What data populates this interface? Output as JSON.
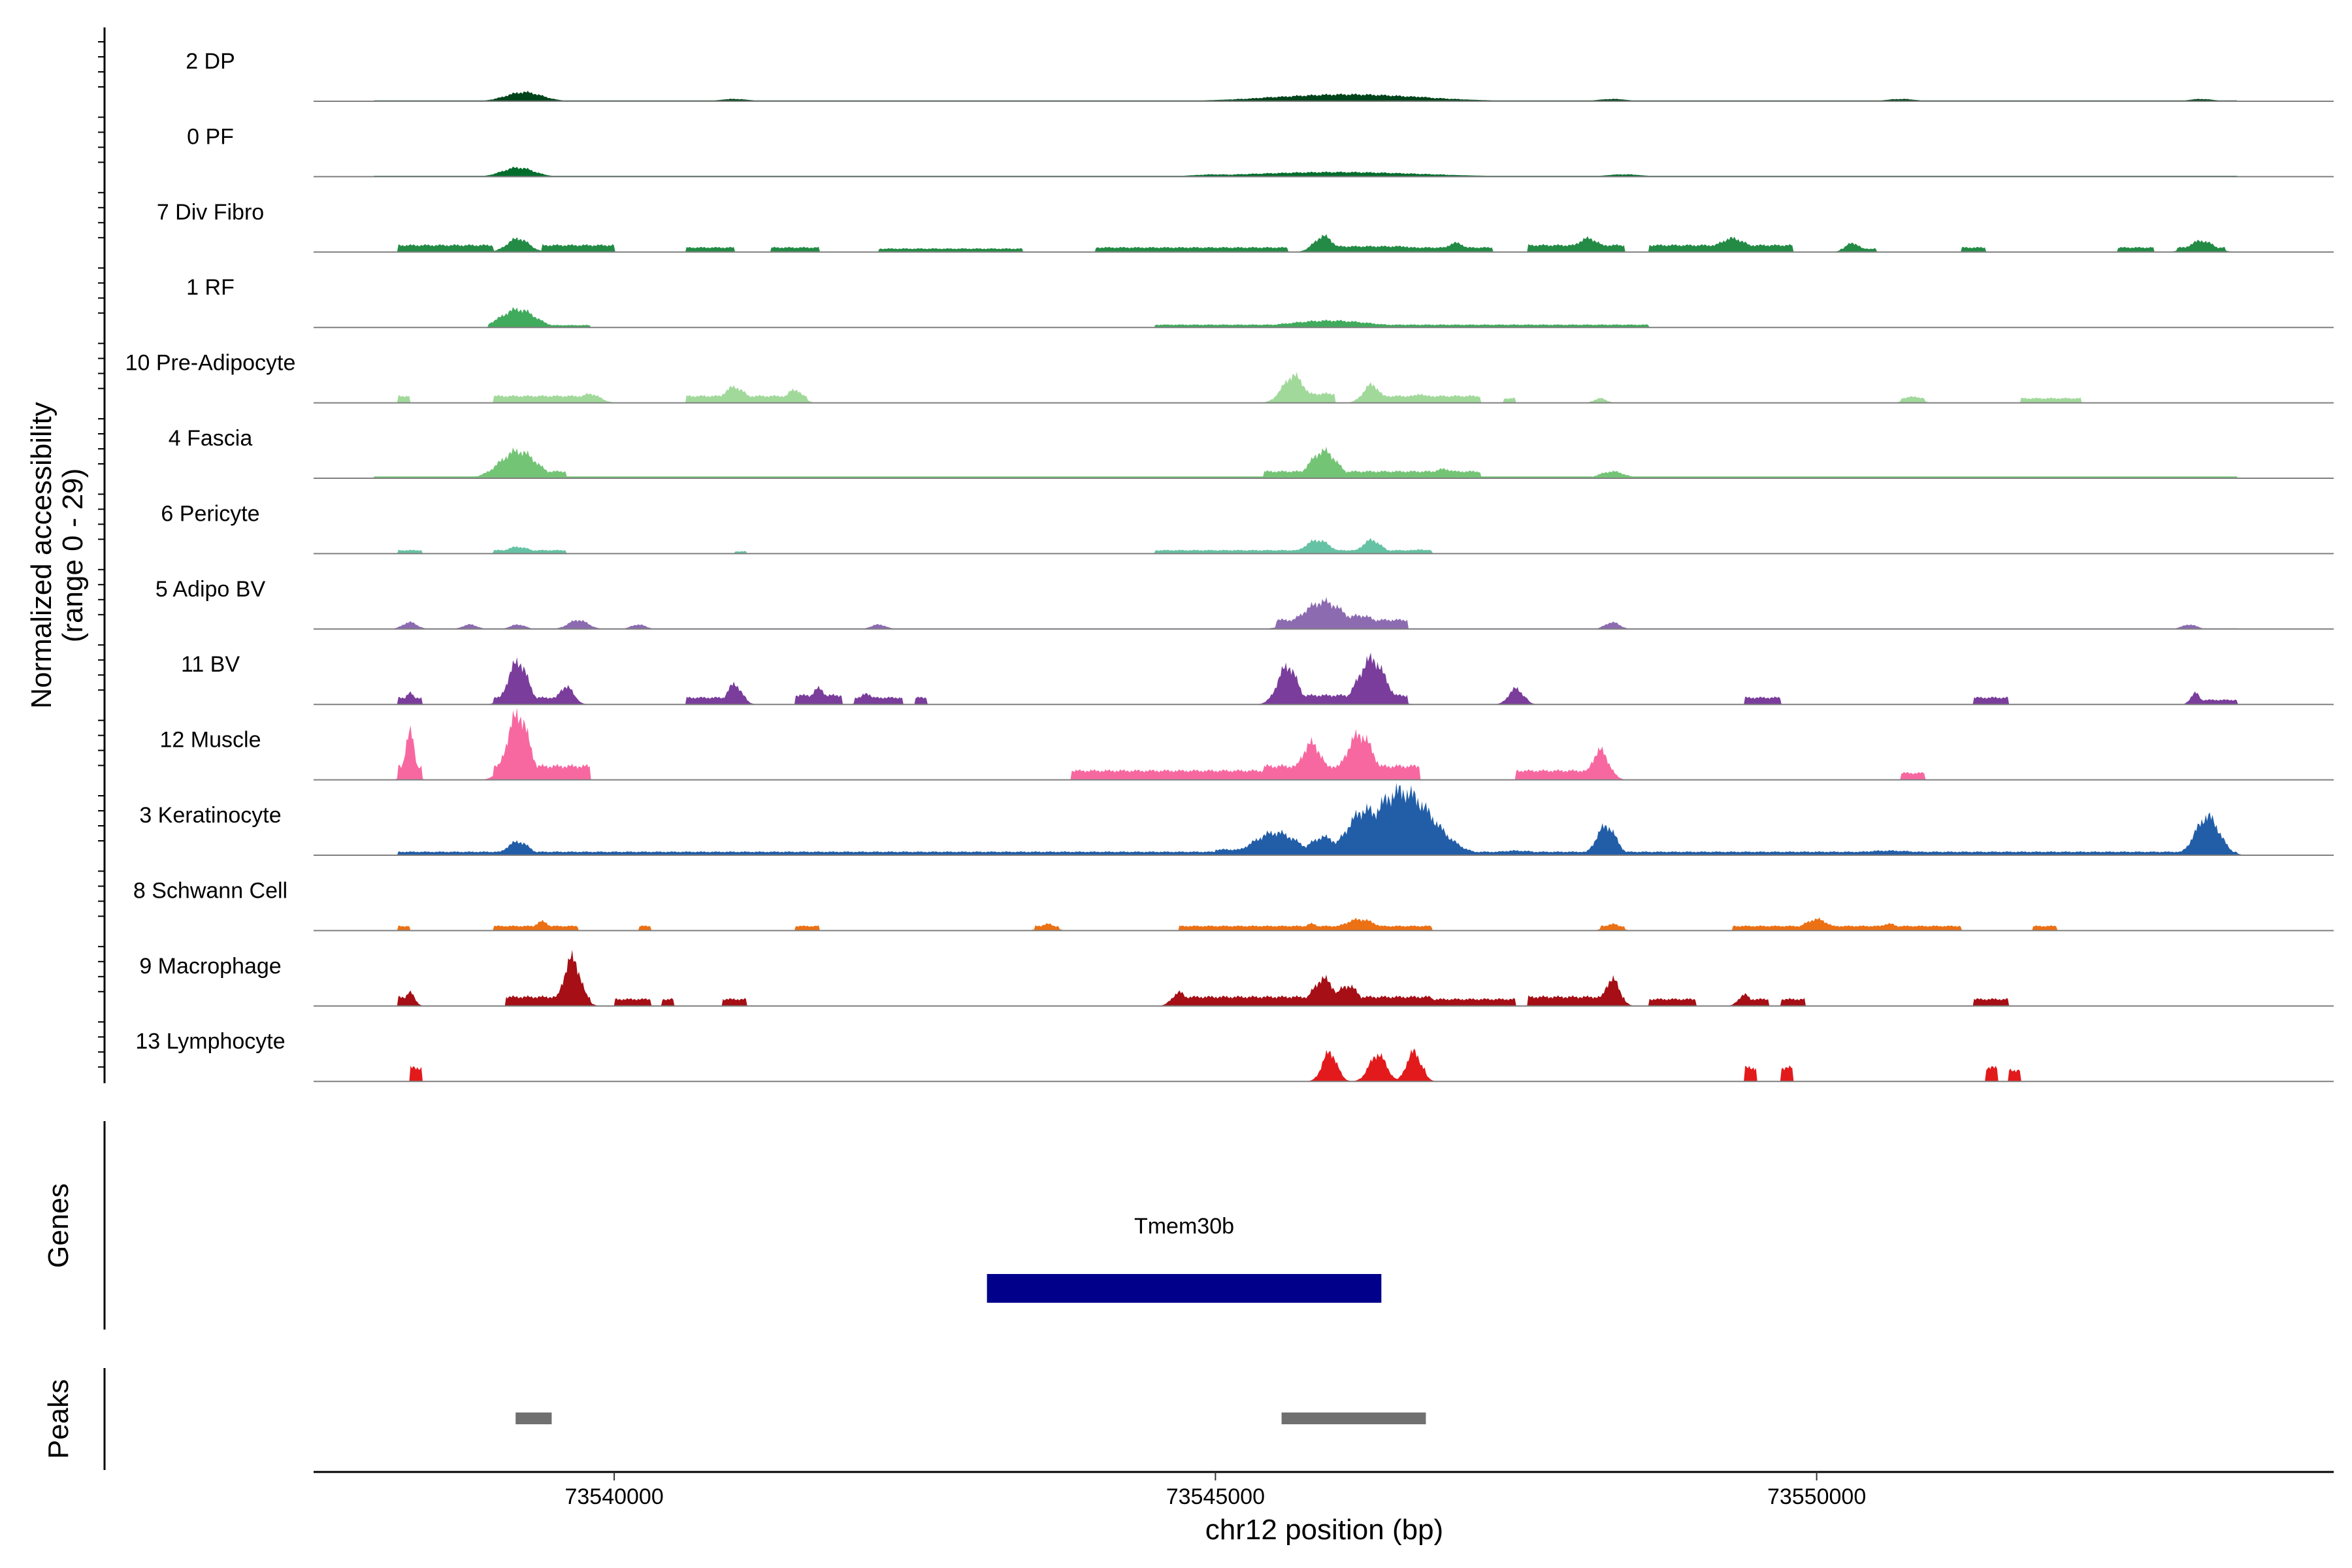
{
  "chart_data": {
    "type": "area",
    "subtype": "coverage-track",
    "chromosome": "chr12",
    "xlim": [
      73537500,
      73554300
    ],
    "x_ticks": [
      73540000,
      73545000,
      73550000
    ],
    "x_tick_labels": [
      "73540000",
      "73545000",
      "73550000"
    ],
    "xlabel": "chr12 position (bp)",
    "ylabel_line1": "Normalized accessibility",
    "ylabel_line2": "(range 0 - 29)",
    "y_range": [
      0,
      29
    ],
    "genes_label": "Genes",
    "peaks_label": "Peaks",
    "genes": [
      {
        "name": "Tmem30b",
        "start": 73543100,
        "end": 73546380,
        "color": "#00008b"
      }
    ],
    "peaks": [
      {
        "start": 73539180,
        "end": 73539480
      },
      {
        "start": 73545550,
        "end": 73546750
      }
    ],
    "peak_color": "#707070",
    "tracks": [
      {
        "name": "2 DP",
        "color": "#00441b",
        "peaks": [
          [
            73539250,
            4,
            150
          ],
          [
            73546100,
            3,
            600
          ],
          [
            73545600,
            2,
            300
          ],
          [
            73546700,
            2,
            100
          ],
          [
            73541000,
            1,
            120
          ],
          [
            73548300,
            1,
            120
          ],
          [
            73550700,
            1,
            120
          ],
          [
            73553200,
            1,
            100
          ]
        ],
        "segments": [
          [
            73538000,
            73553500,
            0.4
          ]
        ]
      },
      {
        "name": "0 PF",
        "color": "#006d2c",
        "peaks": [
          [
            73539200,
            4,
            130
          ],
          [
            73546000,
            2,
            700
          ],
          [
            73548400,
            1,
            150
          ],
          [
            73545000,
            1,
            200
          ]
        ],
        "segments": [
          [
            73538000,
            73553500,
            0.4
          ]
        ]
      },
      {
        "name": "7 Div Fibro",
        "color": "#238b45",
        "peaks": [
          [
            73539200,
            6,
            90
          ],
          [
            73545900,
            7,
            80
          ],
          [
            73548100,
            6,
            100
          ],
          [
            73549300,
            6,
            120
          ],
          [
            73553200,
            5,
            100
          ],
          [
            73547000,
            4,
            80
          ],
          [
            73550300,
            4,
            60
          ]
        ],
        "segments": [
          [
            73538200,
            73539000,
            3
          ],
          [
            73539400,
            73540000,
            3
          ],
          [
            73540600,
            73541000,
            2
          ],
          [
            73541300,
            73541700,
            2
          ],
          [
            73542200,
            73543400,
            1.5
          ],
          [
            73544000,
            73545600,
            2
          ],
          [
            73546000,
            73546600,
            2.5
          ],
          [
            73546600,
            73547300,
            2
          ],
          [
            73547600,
            73548400,
            3
          ],
          [
            73548600,
            73549800,
            3
          ],
          [
            73550200,
            73550500,
            1.5
          ],
          [
            73551200,
            73551400,
            2
          ],
          [
            73552500,
            73552800,
            2
          ],
          [
            73553000,
            73553400,
            2
          ]
        ]
      },
      {
        "name": "1 RF",
        "color": "#41ab5d",
        "peaks": [
          [
            73539200,
            8,
            140
          ],
          [
            73545950,
            3,
            350
          ]
        ],
        "segments": [
          [
            73539000,
            73539800,
            1
          ],
          [
            73544500,
            73548600,
            1.2
          ]
        ]
      },
      {
        "name": "10 Pre-Adipocyte",
        "color": "#a1d99b",
        "peaks": [
          [
            73545650,
            12,
            90
          ],
          [
            73546300,
            8,
            70
          ],
          [
            73541000,
            7,
            90
          ],
          [
            73541500,
            6,
            60
          ],
          [
            73539800,
            4,
            80
          ],
          [
            73546700,
            4,
            60
          ],
          [
            73550800,
            3,
            60
          ],
          [
            73548200,
            2,
            50
          ]
        ],
        "segments": [
          [
            73538200,
            73538300,
            3
          ],
          [
            73539000,
            73539800,
            3
          ],
          [
            73540600,
            73541600,
            3
          ],
          [
            73545500,
            73546000,
            4
          ],
          [
            73546200,
            73546800,
            3
          ],
          [
            73546800,
            73547200,
            3
          ],
          [
            73547400,
            73547500,
            2
          ],
          [
            73550700,
            73550900,
            2
          ],
          [
            73551700,
            73552200,
            2
          ]
        ]
      },
      {
        "name": "4 Fascia",
        "color": "#74c476",
        "peaks": [
          [
            73539200,
            12,
            150
          ],
          [
            73545900,
            12,
            110
          ],
          [
            73546900,
            4,
            120
          ],
          [
            73548300,
            3,
            100
          ],
          [
            73546300,
            3,
            100
          ]
        ],
        "segments": [
          [
            73538000,
            73553500,
            0.8
          ],
          [
            73539000,
            73539600,
            3
          ],
          [
            73545400,
            73547200,
            3
          ]
        ]
      },
      {
        "name": "6 Pericyte",
        "color": "#66c2a4",
        "peaks": [
          [
            73545850,
            6,
            100
          ],
          [
            73546300,
            6,
            80
          ],
          [
            73539200,
            3,
            100
          ],
          [
            73548200,
            2,
            60
          ],
          [
            73546700,
            2,
            50
          ]
        ],
        "segments": [
          [
            73538200,
            73538400,
            1.5
          ],
          [
            73539000,
            73539600,
            1.5
          ],
          [
            73541000,
            73541100,
            1
          ],
          [
            73544500,
            73546800,
            1.5
          ]
        ]
      },
      {
        "name": "5 Adipo BV",
        "color": "#8c6bb1",
        "peaks": [
          [
            73545900,
            12,
            170
          ],
          [
            73546200,
            6,
            140
          ],
          [
            73539700,
            4,
            80
          ],
          [
            73538300,
            3,
            60
          ],
          [
            73538800,
            2,
            60
          ],
          [
            73539200,
            2,
            60
          ],
          [
            73540200,
            2,
            60
          ],
          [
            73542200,
            2,
            60
          ],
          [
            73548300,
            3,
            60
          ],
          [
            73553100,
            2,
            60
          ]
        ],
        "segments": [
          [
            73538200,
            73553500,
            0.3
          ],
          [
            73545500,
            73546600,
            4
          ]
        ]
      },
      {
        "name": "11 BV",
        "color": "#7a3d9b",
        "peaks": [
          [
            73539200,
            19,
            80
          ],
          [
            73546300,
            20,
            110
          ],
          [
            73545600,
            17,
            80
          ],
          [
            73541000,
            9,
            60
          ],
          [
            73539600,
            8,
            60
          ],
          [
            73541700,
            7,
            60
          ],
          [
            73542100,
            5,
            50
          ],
          [
            73547500,
            7,
            60
          ],
          [
            73538300,
            5,
            40
          ],
          [
            73553150,
            5,
            40
          ]
        ],
        "segments": [
          [
            73538200,
            73538400,
            3
          ],
          [
            73539000,
            73539700,
            3
          ],
          [
            73540600,
            73541100,
            3
          ],
          [
            73541500,
            73541900,
            4
          ],
          [
            73542000,
            73542400,
            3
          ],
          [
            73542500,
            73542600,
            3
          ],
          [
            73545500,
            73546600,
            4
          ],
          [
            73547500,
            73547600,
            3
          ],
          [
            73549400,
            73549700,
            3
          ],
          [
            73551300,
            73551600,
            3
          ],
          [
            73553100,
            73553500,
            2
          ]
        ]
      },
      {
        "name": "12 Muscle",
        "color": "#f768a1",
        "peaks": [
          [
            73539200,
            29,
            90
          ],
          [
            73538300,
            21,
            40
          ],
          [
            73546200,
            20,
            110
          ],
          [
            73545800,
            16,
            90
          ],
          [
            73548200,
            13,
            70
          ],
          [
            73539100,
            8,
            60
          ]
        ],
        "segments": [
          [
            73538200,
            73538400,
            6
          ],
          [
            73539000,
            73539800,
            6
          ],
          [
            73543800,
            73545400,
            4
          ],
          [
            73545400,
            73546700,
            6
          ],
          [
            73547500,
            73548100,
            4
          ],
          [
            73550700,
            73550900,
            3
          ]
        ]
      },
      {
        "name": "3 Keratinocyte",
        "color": "#225ea8",
        "peaks": [
          [
            73546550,
            28,
            250
          ],
          [
            73546250,
            20,
            150
          ],
          [
            73545500,
            10,
            180
          ],
          [
            73545900,
            8,
            120
          ],
          [
            73548250,
            13,
            80
          ],
          [
            73553250,
            17,
            100
          ],
          [
            73539200,
            6,
            90
          ],
          [
            73547500,
            2,
            200
          ],
          [
            73550600,
            2,
            300
          ]
        ],
        "segments": [
          [
            73538200,
            73553500,
            1.5
          ],
          [
            73545000,
            73547000,
            2.5
          ]
        ]
      },
      {
        "name": "8 Schwann Cell",
        "color": "#ec7014",
        "peaks": [
          [
            73546200,
            5,
            130
          ],
          [
            73539400,
            4,
            60
          ],
          [
            73545800,
            3,
            60
          ],
          [
            73543600,
            3,
            60
          ],
          [
            73548300,
            3,
            60
          ],
          [
            73550000,
            5,
            100
          ],
          [
            73550600,
            3,
            80
          ]
        ],
        "segments": [
          [
            73538200,
            73538300,
            2
          ],
          [
            73539000,
            73539700,
            2
          ],
          [
            73540200,
            73540300,
            2
          ],
          [
            73541500,
            73541700,
            2
          ],
          [
            73543500,
            73543700,
            2
          ],
          [
            73544700,
            73546800,
            2
          ],
          [
            73548200,
            73548400,
            2
          ],
          [
            73549300,
            73551200,
            2
          ],
          [
            73551800,
            73552000,
            2
          ]
        ]
      },
      {
        "name": "9 Macrophage",
        "color": "#a50f15",
        "peaks": [
          [
            73539650,
            21,
            70
          ],
          [
            73545900,
            12,
            90
          ],
          [
            73548300,
            12,
            60
          ],
          [
            73546100,
            9,
            90
          ],
          [
            73538300,
            6,
            40
          ],
          [
            73544700,
            6,
            60
          ],
          [
            73549400,
            5,
            50
          ]
        ],
        "segments": [
          [
            73538200,
            73538300,
            4
          ],
          [
            73539100,
            73539800,
            4
          ],
          [
            73540000,
            73540300,
            3
          ],
          [
            73540400,
            73540500,
            3
          ],
          [
            73540900,
            73541100,
            3
          ],
          [
            73544700,
            73546800,
            4
          ],
          [
            73546800,
            73547500,
            3
          ],
          [
            73547600,
            73548400,
            4
          ],
          [
            73548600,
            73549000,
            3
          ],
          [
            73549400,
            73549600,
            3
          ],
          [
            73549700,
            73549900,
            3
          ],
          [
            73551300,
            73551600,
            3
          ]
        ]
      },
      {
        "name": "13 Lymphocyte",
        "color": "#e31a1c",
        "peaks": [
          [
            73545950,
            13,
            60
          ],
          [
            73546350,
            12,
            70
          ],
          [
            73546650,
            13,
            60
          ]
        ],
        "segments": [
          [
            73538300,
            73538400,
            6
          ],
          [
            73545900,
            73546000,
            6
          ],
          [
            73546300,
            73546400,
            6
          ],
          [
            73546650,
            73546750,
            6
          ],
          [
            73549400,
            73549500,
            6
          ],
          [
            73549700,
            73549800,
            6
          ],
          [
            73551400,
            73551500,
            6
          ],
          [
            73551600,
            73551700,
            5
          ]
        ]
      }
    ]
  }
}
